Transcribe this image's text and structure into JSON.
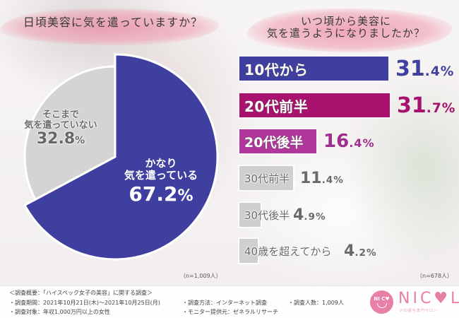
{
  "left_chart": {
    "title": "日頃美容に気を遣っていますか？",
    "n_label": "（n=1,009人）",
    "slices": [
      {
        "label_line1": "かなり",
        "label_line2": "気を遣っている",
        "value_main": "67.2",
        "value_dec": "%",
        "color": "#3f3fa0"
      },
      {
        "label_line1": "そこまで",
        "label_line2": "気を遣っていない",
        "value_main": "32.8",
        "value_dec": "%",
        "color": "#d4d4d4"
      }
    ]
  },
  "right_chart": {
    "title_line1": "いつ頃から美容に",
    "title_line2": "気を遣うようになりましたか？",
    "n_label": "（n=678人）",
    "bars": [
      {
        "label": "10代から",
        "int": "31",
        "dec": ".4%",
        "color": "#3f3fa0",
        "value_color": "#3f3fa0"
      },
      {
        "label": "20代前半",
        "int": "31",
        "dec": ".7%",
        "color": "#a8126e",
        "value_color": "#a8126e"
      },
      {
        "label": "20代後半",
        "int": "16",
        "dec": ".4%",
        "color": "#b0369c",
        "value_color": "#a02e8e"
      },
      {
        "label": "30代前半",
        "int": "11",
        "dec": ".4%",
        "color": "#cfcfcf",
        "value_color": "#6a6a6a"
      },
      {
        "label": "30代後半",
        "int": "4",
        "dec": ".9%",
        "color": "#cfcfcf",
        "value_color": "#6a6a6a"
      },
      {
        "label": "40歳を超えてから",
        "int": "4",
        "dec": ".2%",
        "color": "#cfcfcf",
        "value_color": "#6a6a6a"
      }
    ]
  },
  "footer": {
    "survey_title": "＜調査概要：「ハイスペック女子の美容」に関する調査＞",
    "period": "・調査期間：2021年10月21日(木)～2021年10月25日(月)",
    "method": "・調査方法：インターネット調査",
    "count": "・調査人数：1,009人",
    "target": "・調査対象：年収1,000万円以上の女性",
    "provider": "・モニター提供元：ゼネラルリサーチ"
  },
  "logo": {
    "circle_text": "NI C♥",
    "wordmark": "NIC♥L",
    "subtext": "VIO脱毛専門サロン"
  },
  "chart_data": [
    {
      "type": "pie",
      "title": "日頃美容に気を遣っていますか？",
      "categories": [
        "かなり気を遣っている",
        "そこまで気を遣っていない"
      ],
      "values": [
        67.2,
        32.8
      ],
      "unit": "%",
      "n": "n=1,009人",
      "colors": [
        "#3f3fa0",
        "#d4d4d4"
      ]
    },
    {
      "type": "bar",
      "orientation": "horizontal",
      "title": "いつ頃から美容に気を遣うようになりましたか？",
      "categories": [
        "10代から",
        "20代前半",
        "20代後半",
        "30代前半",
        "30代後半",
        "40歳を超えてから"
      ],
      "values": [
        31.4,
        31.7,
        16.4,
        11.4,
        4.9,
        4.2
      ],
      "unit": "%",
      "n": "n=678人",
      "xlabel": "",
      "ylabel": ""
    }
  ]
}
